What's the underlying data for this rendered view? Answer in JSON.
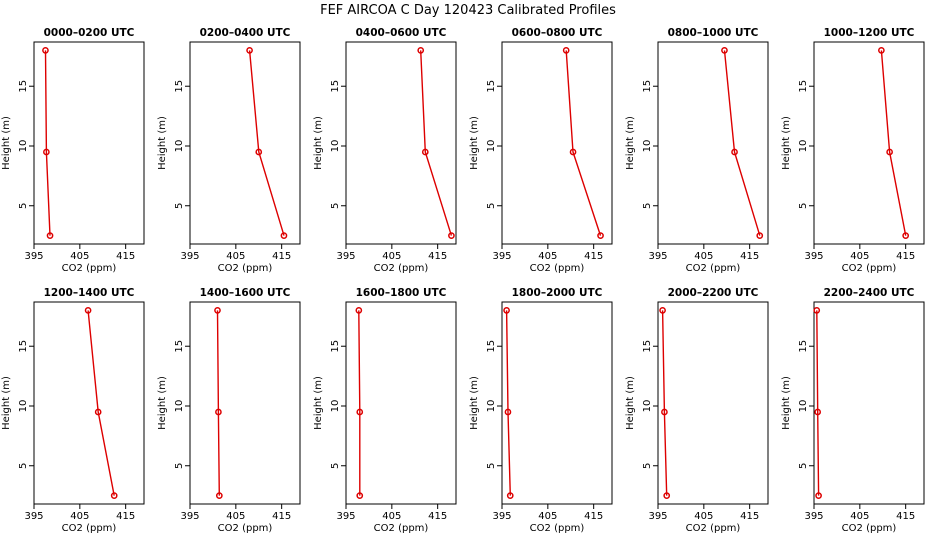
{
  "suptitle": "FEF AIRCOA C  Day 120423  Calibrated Profiles",
  "colors": {
    "line": "#dd0000",
    "marker": "#dd0000",
    "frame": "#000000"
  },
  "chart_data": [
    {
      "type": "line",
      "title": "0000–0200 UTC",
      "xlabel": "CO2 (ppm)",
      "ylabel": "Height (m)",
      "xlim": [
        395,
        419
      ],
      "ylim": [
        1.8,
        18.7
      ],
      "xticks": [
        395,
        405,
        415
      ],
      "yticks": [
        5,
        10,
        15
      ],
      "series": [
        {
          "x": [
            397.5,
            397.7,
            398.5
          ],
          "y": [
            18.0,
            9.5,
            2.5
          ]
        }
      ]
    },
    {
      "type": "line",
      "title": "0200–0400 UTC",
      "xlabel": "CO2 (ppm)",
      "ylabel": "Height (m)",
      "xlim": [
        395,
        419
      ],
      "ylim": [
        1.8,
        18.7
      ],
      "xticks": [
        395,
        405,
        415
      ],
      "yticks": [
        5,
        10,
        15
      ],
      "series": [
        {
          "x": [
            408.0,
            410.0,
            415.5
          ],
          "y": [
            18.0,
            9.5,
            2.5
          ]
        }
      ]
    },
    {
      "type": "line",
      "title": "0400–0600 UTC",
      "xlabel": "CO2 (ppm)",
      "ylabel": "Height (m)",
      "xlim": [
        395,
        419
      ],
      "ylim": [
        1.8,
        18.7
      ],
      "xticks": [
        395,
        405,
        415
      ],
      "yticks": [
        5,
        10,
        15
      ],
      "series": [
        {
          "x": [
            411.3,
            412.3,
            418.0
          ],
          "y": [
            18.0,
            9.5,
            2.5
          ]
        }
      ]
    },
    {
      "type": "line",
      "title": "0600–0800 UTC",
      "xlabel": "CO2 (ppm)",
      "ylabel": "Height (m)",
      "xlim": [
        395,
        419
      ],
      "ylim": [
        1.8,
        18.7
      ],
      "xticks": [
        395,
        405,
        415
      ],
      "yticks": [
        5,
        10,
        15
      ],
      "series": [
        {
          "x": [
            409.0,
            410.5,
            416.5
          ],
          "y": [
            18.0,
            9.5,
            2.5
          ]
        }
      ]
    },
    {
      "type": "line",
      "title": "0800–1000 UTC",
      "xlabel": "CO2 (ppm)",
      "ylabel": "Height (m)",
      "xlim": [
        395,
        419
      ],
      "ylim": [
        1.8,
        18.7
      ],
      "xticks": [
        395,
        405,
        415
      ],
      "yticks": [
        5,
        10,
        15
      ],
      "series": [
        {
          "x": [
            409.5,
            411.7,
            417.2
          ],
          "y": [
            18.0,
            9.5,
            2.5
          ]
        }
      ]
    },
    {
      "type": "line",
      "title": "1000–1200 UTC",
      "xlabel": "CO2 (ppm)",
      "ylabel": "Height (m)",
      "xlim": [
        395,
        419
      ],
      "ylim": [
        1.8,
        18.7
      ],
      "xticks": [
        395,
        405,
        415
      ],
      "yticks": [
        5,
        10,
        15
      ],
      "series": [
        {
          "x": [
            409.7,
            411.5,
            415.0
          ],
          "y": [
            18.0,
            9.5,
            2.5
          ]
        }
      ]
    },
    {
      "type": "line",
      "title": "1200–1400 UTC",
      "xlabel": "CO2 (ppm)",
      "ylabel": "Height (m)",
      "xlim": [
        395,
        419
      ],
      "ylim": [
        1.8,
        18.7
      ],
      "xticks": [
        395,
        405,
        415
      ],
      "yticks": [
        5,
        10,
        15
      ],
      "series": [
        {
          "x": [
            406.8,
            409.0,
            412.5
          ],
          "y": [
            18.0,
            9.5,
            2.5
          ]
        }
      ]
    },
    {
      "type": "line",
      "title": "1400–1600 UTC",
      "xlabel": "CO2 (ppm)",
      "ylabel": "Height (m)",
      "xlim": [
        395,
        419
      ],
      "ylim": [
        1.8,
        18.7
      ],
      "xticks": [
        395,
        405,
        415
      ],
      "yticks": [
        5,
        10,
        15
      ],
      "series": [
        {
          "x": [
            401.0,
            401.2,
            401.4
          ],
          "y": [
            18.0,
            9.5,
            2.5
          ]
        }
      ]
    },
    {
      "type": "line",
      "title": "1600–1800 UTC",
      "xlabel": "CO2 (ppm)",
      "ylabel": "Height (m)",
      "xlim": [
        395,
        419
      ],
      "ylim": [
        1.8,
        18.7
      ],
      "xticks": [
        395,
        405,
        415
      ],
      "yticks": [
        5,
        10,
        15
      ],
      "series": [
        {
          "x": [
            397.8,
            398.0,
            398.0
          ],
          "y": [
            18.0,
            9.5,
            2.5
          ]
        }
      ]
    },
    {
      "type": "line",
      "title": "1800–2000 UTC",
      "xlabel": "CO2 (ppm)",
      "ylabel": "Height (m)",
      "xlim": [
        395,
        419
      ],
      "ylim": [
        1.8,
        18.7
      ],
      "xticks": [
        395,
        405,
        415
      ],
      "yticks": [
        5,
        10,
        15
      ],
      "series": [
        {
          "x": [
            396.0,
            396.3,
            396.8
          ],
          "y": [
            18.0,
            9.5,
            2.5
          ]
        }
      ]
    },
    {
      "type": "line",
      "title": "2000–2200 UTC",
      "xlabel": "CO2 (ppm)",
      "ylabel": "Height (m)",
      "xlim": [
        395,
        419
      ],
      "ylim": [
        1.8,
        18.7
      ],
      "xticks": [
        395,
        405,
        415
      ],
      "yticks": [
        5,
        10,
        15
      ],
      "series": [
        {
          "x": [
            396.0,
            396.4,
            396.9
          ],
          "y": [
            18.0,
            9.5,
            2.5
          ]
        }
      ]
    },
    {
      "type": "line",
      "title": "2200–2400 UTC",
      "xlabel": "CO2 (ppm)",
      "ylabel": "Height (m)",
      "xlim": [
        395,
        419
      ],
      "ylim": [
        1.8,
        18.7
      ],
      "xticks": [
        395,
        405,
        415
      ],
      "yticks": [
        5,
        10,
        15
      ],
      "series": [
        {
          "x": [
            395.6,
            395.8,
            396.0
          ],
          "y": [
            18.0,
            9.5,
            2.5
          ]
        }
      ]
    }
  ]
}
